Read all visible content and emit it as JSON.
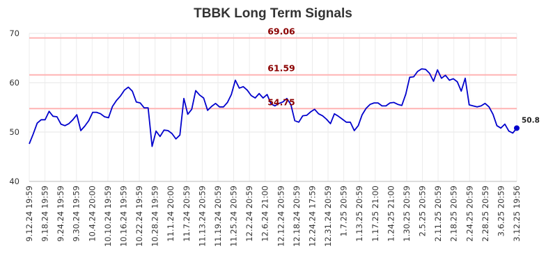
{
  "chart_data": {
    "type": "line",
    "title": "TBBK Long Term Signals",
    "xlabel": "",
    "ylabel": "",
    "ylim": [
      40,
      70
    ],
    "yticks": [
      40,
      50,
      60,
      70
    ],
    "grid": true,
    "x_tick_labels": [
      "9.12.24 19:59",
      "9.18.24 19:59",
      "9.24.24 19:59",
      "9.30.24 19:59",
      "10.4.24 20:00",
      "10.10.24 19:59",
      "10.16.24 19:59",
      "10.22.24 19:59",
      "10.28.24 19:59",
      "11.1.24 20:00",
      "11.7.24 20:59",
      "11.13.24 20:59",
      "11.19.24 20:59",
      "11.25.24 20:59",
      "12.2.24 20:59",
      "12.6.24 21:00",
      "12.12.24 20:59",
      "12.18.24 20:59",
      "12.24.24 17:59",
      "12.31.24 20:59",
      "1.7.25 20:59",
      "1.13.25 20:59",
      "1.17.25 21:00",
      "1.24.25 21:00",
      "1.30.25 20:59",
      "2.5.25 20:59",
      "2.11.25 20:59",
      "2.18.25 20:59",
      "2.24.25 20:59",
      "2.28.25 20:59",
      "3.6.25 20:59",
      "3.12.25 19:56"
    ],
    "reference_lines": [
      {
        "value": 69.06,
        "label": "69.06",
        "color": "#ffb3b3"
      },
      {
        "value": 61.59,
        "label": "61.59",
        "color": "#ffb3b3"
      },
      {
        "value": 54.75,
        "label": "54.75",
        "color": "#ffb3b3"
      }
    ],
    "series": [
      {
        "color": "#0000cc",
        "last_label": "50.8",
        "values": [
          47.6,
          49.6,
          51.8,
          52.5,
          52.5,
          54.2,
          53.2,
          53.1,
          51.6,
          51.3,
          51.7,
          52.5,
          53.5,
          50.3,
          51.2,
          52.3,
          54.0,
          54.0,
          53.7,
          53.1,
          52.9,
          55.2,
          56.4,
          57.3,
          58.5,
          59.1,
          58.3,
          56.1,
          55.9,
          54.9,
          54.9,
          47.1,
          50.2,
          49.1,
          50.4,
          50.3,
          49.7,
          48.6,
          49.4,
          56.8,
          53.6,
          54.6,
          58.4,
          57.5,
          56.9,
          54.4,
          55.2,
          55.8,
          55.1,
          55.1,
          56.0,
          57.6,
          60.5,
          58.9,
          59.2,
          58.5,
          57.4,
          56.9,
          57.8,
          56.9,
          57.6,
          55.7,
          55.3,
          55.8,
          56.1,
          56.8,
          55.6,
          52.3,
          52.0,
          53.3,
          53.4,
          54.1,
          54.6,
          53.7,
          53.3,
          52.6,
          51.7,
          53.7,
          53.2,
          52.6,
          52.0,
          52.0,
          50.3,
          51.3,
          53.5,
          54.8,
          55.6,
          55.9,
          55.9,
          55.3,
          55.3,
          55.9,
          56.0,
          55.6,
          55.4,
          57.7,
          61.1,
          61.2,
          62.3,
          62.8,
          62.7,
          61.9,
          60.3,
          62.6,
          60.9,
          61.5,
          60.5,
          60.8,
          60.2,
          58.3,
          60.9,
          55.5,
          55.3,
          55.1,
          55.3,
          55.8,
          55.1,
          53.6,
          51.3,
          50.8,
          51.6,
          50.2,
          49.8,
          50.8
        ]
      }
    ]
  }
}
